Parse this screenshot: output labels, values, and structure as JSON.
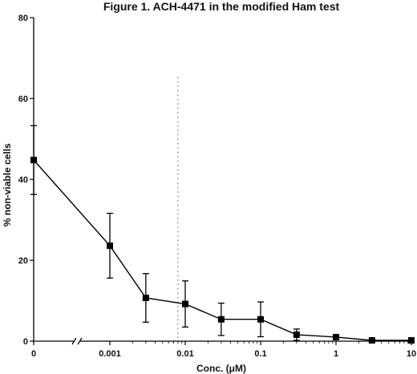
{
  "chart_data": {
    "type": "line",
    "title": "Figure 1. ACH-4471 in the modified Ham test",
    "xlabel": "Conc. (μM)",
    "ylabel": "% non-viable cells",
    "xscale": "log",
    "x_break": true,
    "ylim": [
      0,
      80
    ],
    "yticks": [
      0,
      20,
      40,
      60,
      80
    ],
    "xtick_labels": [
      {
        "value": 0,
        "label": "0"
      },
      {
        "value": 0.001,
        "label": "0.001"
      },
      {
        "value": 0.01,
        "label": "0.01"
      },
      {
        "value": 0.1,
        "label": "0.1"
      },
      {
        "value": 1,
        "label": "1"
      },
      {
        "value": 10,
        "label": "10"
      }
    ],
    "reference_line": {
      "x": 0.008,
      "style": "dotted"
    },
    "grid": false,
    "legend": "none",
    "series": [
      {
        "color": "#000000",
        "marker": "square",
        "points": [
          {
            "x": 0,
            "y": 44.8,
            "err": 8.5
          },
          {
            "x": 0.001,
            "y": 23.6,
            "err": 8.0
          },
          {
            "x": 0.003,
            "y": 10.7,
            "err": 6.0
          },
          {
            "x": 0.01,
            "y": 9.2,
            "err": 5.7
          },
          {
            "x": 0.03,
            "y": 5.4,
            "err": 4.0
          },
          {
            "x": 0.1,
            "y": 5.4,
            "err": 4.3
          },
          {
            "x": 0.3,
            "y": 1.6,
            "err": 1.4
          },
          {
            "x": 1,
            "y": 1.0,
            "err": 0.4
          },
          {
            "x": 3,
            "y": 0.2,
            "err": 0.2
          },
          {
            "x": 10,
            "y": 0.2,
            "err": 0.2
          }
        ]
      }
    ]
  }
}
